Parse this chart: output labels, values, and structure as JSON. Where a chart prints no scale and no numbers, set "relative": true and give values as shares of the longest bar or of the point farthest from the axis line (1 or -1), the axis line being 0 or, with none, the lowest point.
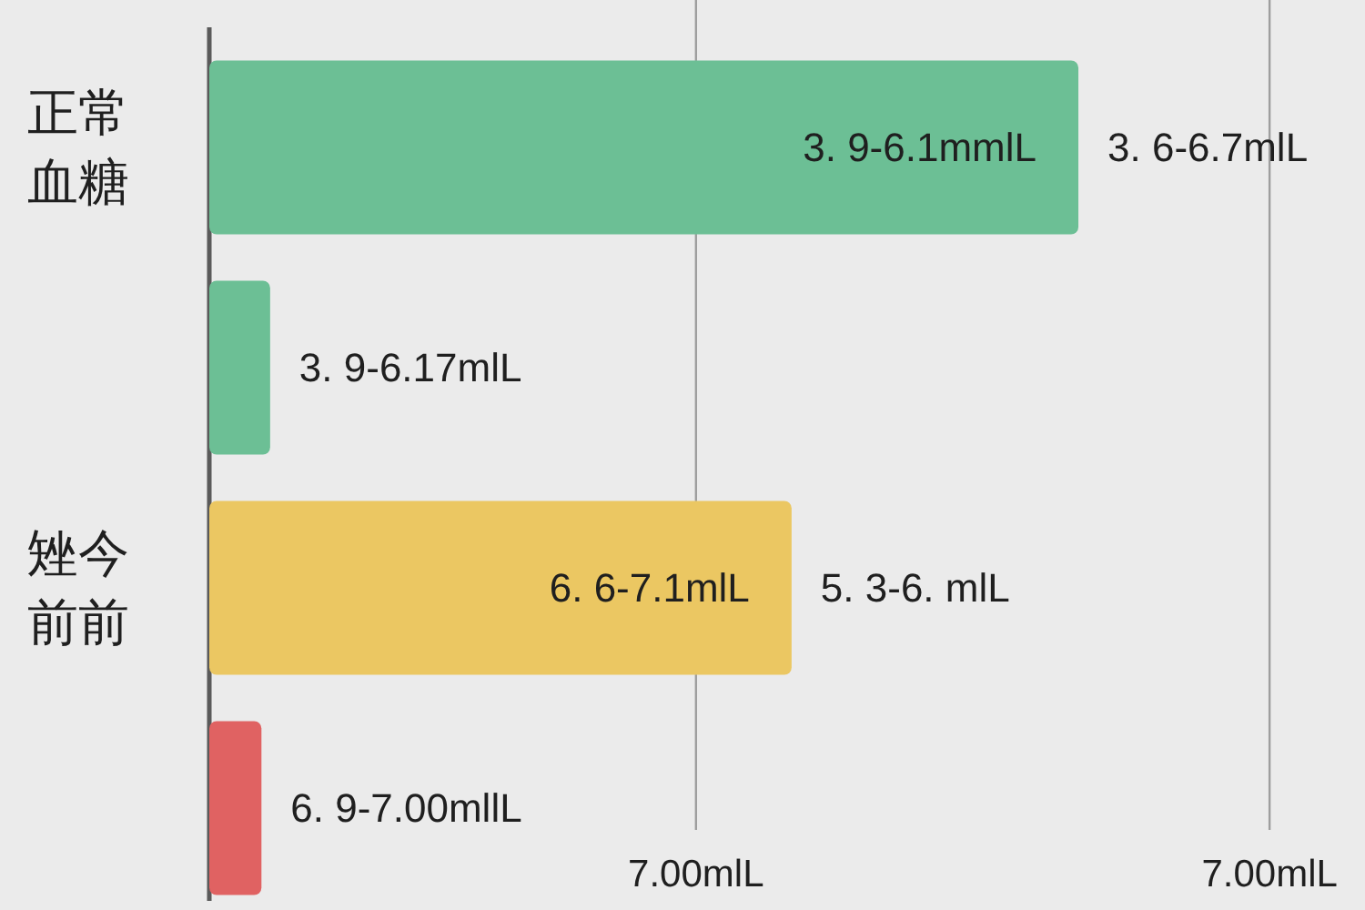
{
  "chart_data": {
    "type": "bar",
    "orientation": "horizontal",
    "relative": true,
    "categories": [
      "正常血糖",
      null,
      "矬今前前",
      null
    ],
    "values": [
      1,
      0.07,
      0.67,
      0.06
    ],
    "colors": [
      "#6cbf95",
      "#6cbf95",
      "#ebc762",
      "#e06262"
    ],
    "annotations": [
      {
        "text": "3. 9-6.1mmlL",
        "x": 1,
        "y": "正常血糖"
      },
      {
        "text": "3. 6-6.7mlL",
        "x": 1,
        "y": "正常血糖"
      },
      {
        "text": "3. 9-6.17mlL",
        "x": 0.07
      },
      {
        "text": "6. 6-7.1mlL",
        "x": 0.67,
        "y": "矬今前前"
      },
      {
        "text": "5. 3-6. mlL",
        "x": 0.67,
        "y": "矬今前前"
      },
      {
        "text": "6. 9-7.00mllL",
        "x": 0.06
      }
    ],
    "ref_lines": [
      {
        "axis": "x",
        "value": 0.56,
        "label": "7.00mlL",
        "color": "#9e9e9e"
      },
      {
        "axis": "x",
        "value": 1.22,
        "label": "7.00mlL",
        "color": "#9e9e9e"
      }
    ]
  }
}
